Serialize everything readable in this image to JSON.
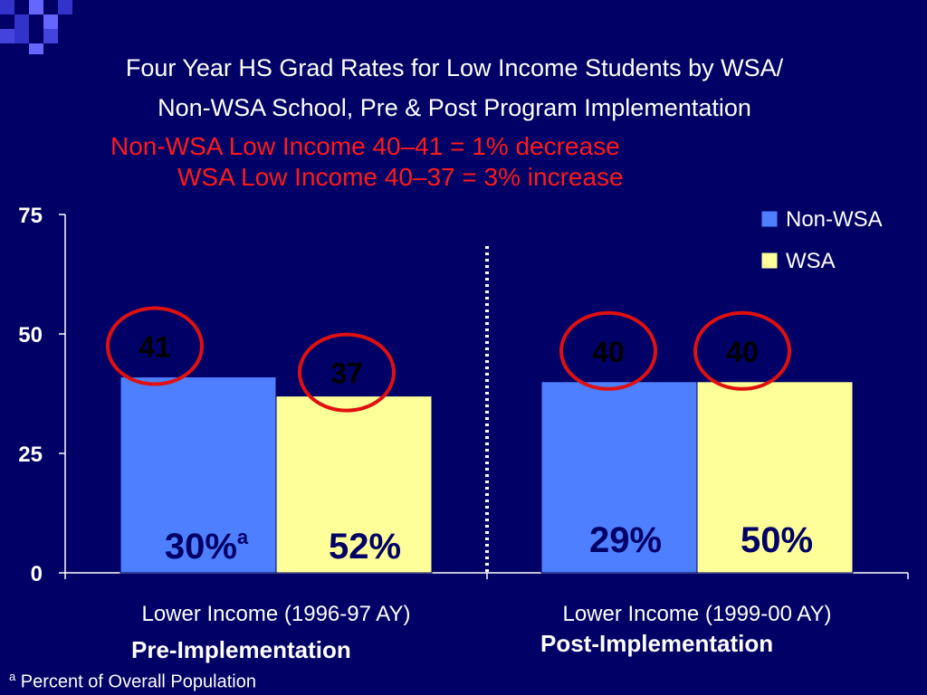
{
  "title_line1": "Four Year HS Grad Rates for Low Income Students by WSA/",
  "title_line2": "Non-WSA School, Pre & Post Program Implementation",
  "subtitle_line1": "Non-WSA Low Income 40–41 = 1% decrease",
  "subtitle_line2": "WSA Low Income 40–37 = 3% increase",
  "colors": {
    "background": "#000066",
    "non_wsa": "#4d7fff",
    "wsa": "#ffff99",
    "circle": "#e01010",
    "subtitle": "#ff1a1a",
    "pct_label": "#000066"
  },
  "chart_data": {
    "type": "bar",
    "categories": [
      "Lower Income (1996-97 AY)",
      "Lower Income (1999-00 AY)"
    ],
    "series": [
      {
        "name": "Non-WSA",
        "values": [
          41,
          40
        ],
        "value_labels": [
          "41",
          "40"
        ],
        "pct_labels": [
          "30%",
          "29%"
        ]
      },
      {
        "name": "WSA",
        "values": [
          37,
          40
        ],
        "value_labels": [
          "37",
          "40"
        ],
        "pct_labels": [
          "52%",
          "50%"
        ]
      }
    ],
    "pct_label_marks": [
      "a",
      "",
      "",
      ""
    ],
    "yticks": [
      "0",
      "25",
      "50",
      "75"
    ],
    "ylim": [
      0,
      75
    ],
    "legend_position": "top-right",
    "phase_labels": [
      "Pre-Implementation",
      "Post-Implementation"
    ]
  },
  "footnote": {
    "mark": "a",
    "text": "Percent of Overall Population"
  }
}
